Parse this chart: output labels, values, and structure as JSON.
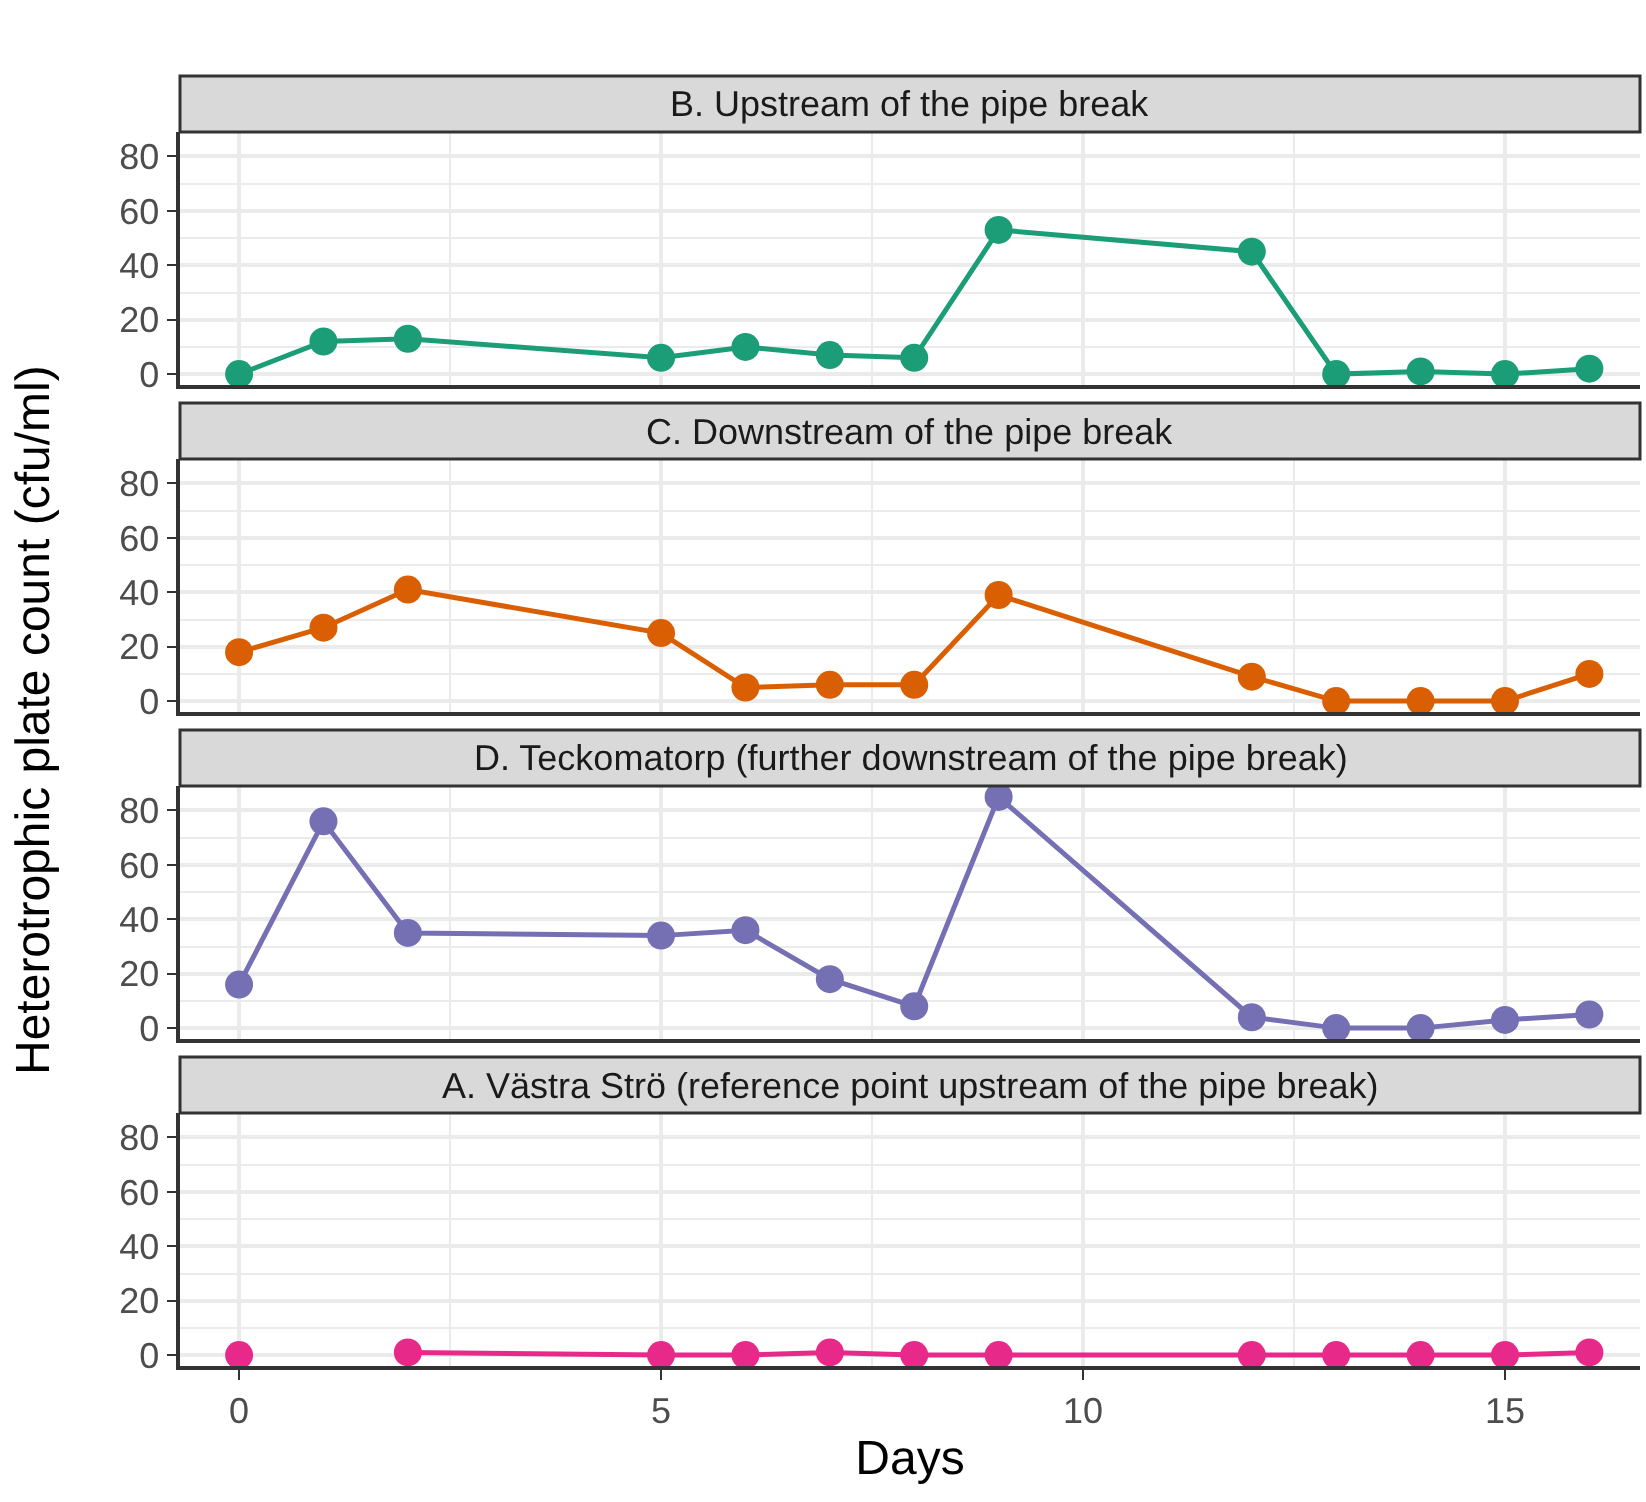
{
  "chart_data": [
    {
      "type": "line",
      "title": "B. Upstream of the pipe break",
      "ylabel": "Heterotrophic plate count (cfu/ml)",
      "x": [
        0,
        1,
        2,
        5,
        6,
        7,
        8,
        9,
        12,
        13,
        14,
        15,
        16
      ],
      "series": [
        {
          "color": "#1b9e77",
          "values": [
            0,
            12,
            13,
            6,
            10,
            7,
            6,
            53,
            45,
            0,
            1,
            0,
            2
          ]
        }
      ],
      "xlim": [
        -0.7,
        16.6
      ],
      "xticks": [
        0,
        5,
        10,
        15
      ],
      "ylim": [
        -4,
        89
      ],
      "yticks": [
        0,
        20,
        40,
        60,
        80
      ],
      "grid": true,
      "marker": "circle",
      "tick_labels": "y"
    },
    {
      "type": "line",
      "title": "C. Downstream of the pipe break",
      "x": [
        0,
        1,
        2,
        5,
        6,
        7,
        8,
        9,
        12,
        13,
        14,
        15,
        16
      ],
      "series": [
        {
          "color": "#d95f02",
          "values": [
            18,
            27,
            41,
            25,
            5,
            6,
            6,
            39,
            9,
            0,
            0,
            0,
            10
          ]
        }
      ],
      "xlim": [
        -0.7,
        16.6
      ],
      "xticks": [
        0,
        5,
        10,
        15
      ],
      "ylim": [
        -4,
        89
      ],
      "yticks": [
        0,
        20,
        40,
        60,
        80
      ],
      "grid": true,
      "marker": "circle",
      "tick_labels": "y"
    },
    {
      "type": "line",
      "title": "D. Teckomatorp (further downstream of the pipe break)",
      "x": [
        0,
        1,
        2,
        5,
        6,
        7,
        8,
        9,
        12,
        13,
        14,
        15,
        16
      ],
      "series": [
        {
          "color": "#7570b3",
          "values": [
            16,
            76,
            35,
            34,
            36,
            18,
            8,
            85,
            4,
            0,
            0,
            3,
            5
          ]
        }
      ],
      "xlim": [
        -0.7,
        16.6
      ],
      "xticks": [
        0,
        5,
        10,
        15
      ],
      "ylim": [
        -4,
        89
      ],
      "yticks": [
        0,
        20,
        40,
        60,
        80
      ],
      "grid": true,
      "marker": "circle",
      "tick_labels": "y"
    },
    {
      "type": "line",
      "title": "A. Västra Strö (reference point upstream of the pipe break)",
      "xlabel": "Days",
      "x": [
        0,
        1,
        2,
        5,
        6,
        7,
        8,
        9,
        12,
        13,
        14,
        15,
        16
      ],
      "series": [
        {
          "color": "#e7298a",
          "values": [
            0,
            null,
            1,
            0,
            0,
            1,
            0,
            0,
            0,
            0,
            0,
            0,
            1
          ]
        }
      ],
      "xlim": [
        -0.7,
        16.6
      ],
      "xticks": [
        0,
        5,
        10,
        15
      ],
      "ylim": [
        -4,
        89
      ],
      "yticks": [
        0,
        20,
        40,
        60,
        80
      ],
      "grid": true,
      "marker": "circle"
    }
  ]
}
